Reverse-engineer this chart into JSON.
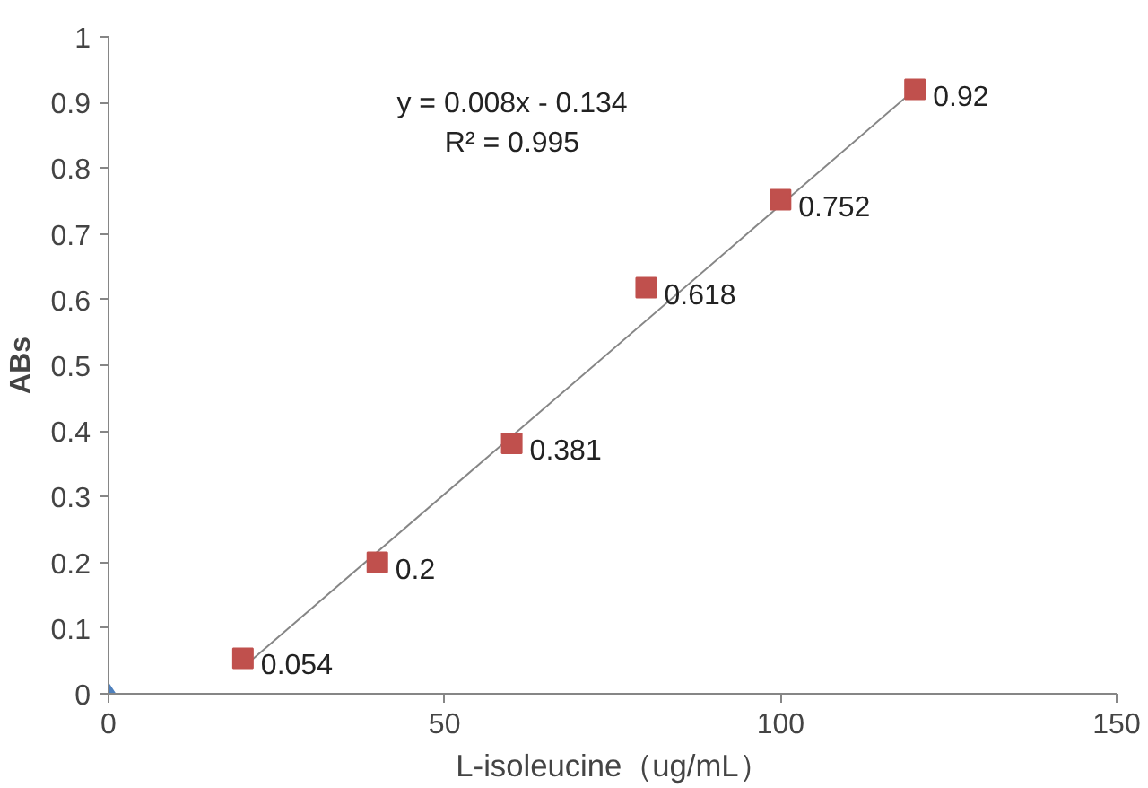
{
  "chart_data": {
    "type": "scatter",
    "xlabel": "L-isoleucine（ug/mL）",
    "ylabel": "ABs",
    "xlim": [
      0,
      150
    ],
    "xticks": [
      0,
      50,
      100,
      150
    ],
    "ylim": [
      0,
      1
    ],
    "yticks": [
      0,
      0.1,
      0.2,
      0.3,
      0.4,
      0.5,
      0.6,
      0.7,
      0.8,
      0.9,
      1
    ],
    "grid": false,
    "series": [
      {
        "type": "line",
        "color": "#868686",
        "x": [
          20,
          120
        ],
        "values": [
          0.04,
          0.92
        ],
        "marker": "none"
      },
      {
        "color": "#4f81bd",
        "x": [
          0
        ],
        "values": [
          0
        ],
        "marker": "diamond"
      },
      {
        "color": "#c0504d",
        "x": [
          20,
          40,
          60,
          80,
          100,
          120
        ],
        "values": [
          0.054,
          0.2,
          0.381,
          0.618,
          0.752,
          0.92
        ],
        "marker": "square",
        "data_labels": true
      }
    ],
    "annotations": [
      "y = 0.008x - 0.134",
      "R² = 0.995"
    ]
  }
}
